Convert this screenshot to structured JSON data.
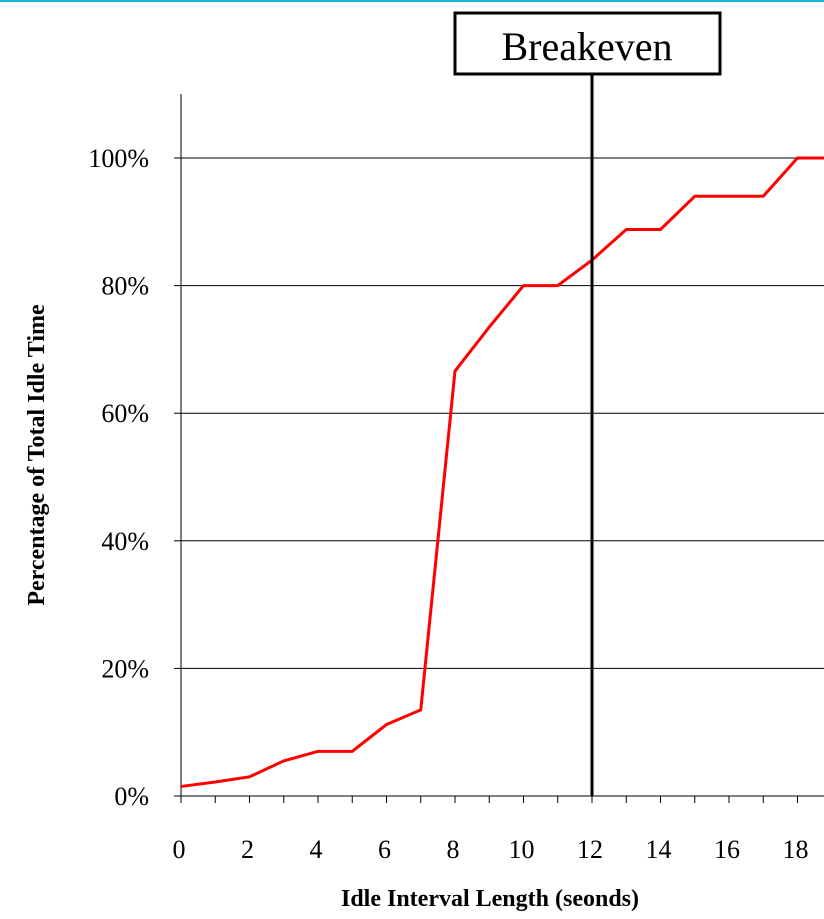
{
  "chart_data": {
    "type": "line",
    "title": "",
    "xlabel": "Idle Interval Length (seonds)",
    "ylabel": "Percentage of Total Idle Time",
    "xlim": [
      0,
      19
    ],
    "ylim": [
      0,
      110
    ],
    "x_ticks": [
      0,
      2,
      4,
      6,
      8,
      10,
      12,
      14,
      16,
      18
    ],
    "x_tick_labels": [
      "0",
      "2",
      "4",
      "6",
      "8",
      "10",
      "12",
      "14",
      "16",
      "18"
    ],
    "y_ticks": [
      0,
      20,
      40,
      60,
      80,
      100
    ],
    "y_tick_labels": [
      "0%",
      "20%",
      "40%",
      "60%",
      "80%",
      "100%"
    ],
    "grid": "horizontal",
    "series": [
      {
        "color": "#ff0000",
        "x": [
          0,
          1,
          2,
          3,
          4,
          5,
          6,
          7,
          8,
          9,
          10,
          11,
          12,
          13,
          14,
          15,
          16,
          17,
          18,
          19
        ],
        "y": [
          1.5,
          2.2,
          3,
          5.5,
          7,
          7,
          11.2,
          13.5,
          66.6,
          73.5,
          80,
          80,
          84,
          88.8,
          88.8,
          94,
          94,
          94,
          100,
          100
        ]
      }
    ],
    "annotations": [
      {
        "text": "Breakeven",
        "x": 12
      }
    ]
  }
}
